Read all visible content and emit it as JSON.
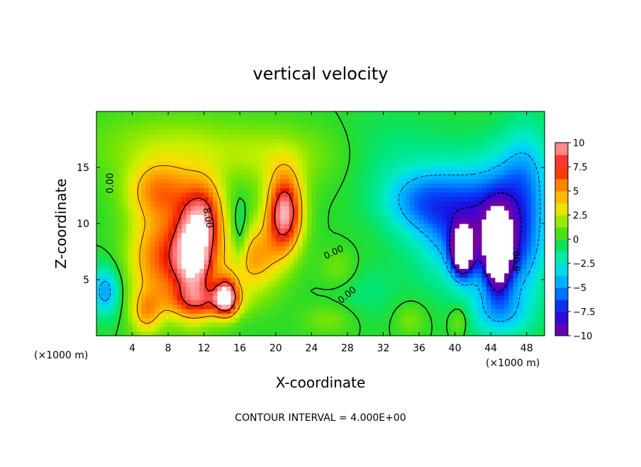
{
  "chart_data": {
    "type": "heatmap",
    "title": "vertical velocity",
    "xlabel": "X-coordinate",
    "ylabel": "Z-coordinate",
    "x_unit": "(×1000 m)",
    "xlim": [
      0,
      50
    ],
    "ylim": [
      0,
      20
    ],
    "x_ticks": [
      4,
      8,
      12,
      16,
      20,
      24,
      28,
      32,
      36,
      40,
      44,
      48
    ],
    "y_ticks": [
      5,
      10,
      15
    ],
    "colorbar": {
      "range": [
        -10,
        10
      ],
      "ticks": [
        10,
        7.5,
        5,
        2.5,
        0,
        -2.5,
        -5,
        -7.5,
        -10
      ],
      "tick_labels": [
        "10",
        "7.5",
        "5",
        "2.5",
        "0",
        "−2.5",
        "−5",
        "−7.5",
        "−10"
      ]
    },
    "contour_interval_text": "CONTOUR INTERVAL = 4.000E+00",
    "contour_labels": [
      {
        "text": "0.00",
        "x": 1.6,
        "y": 13.6,
        "angle": -90
      },
      {
        "text": "8.00",
        "x": 12.4,
        "y": 10.5,
        "angle": 80
      },
      {
        "text": "0.00",
        "x": 26.5,
        "y": 7.4,
        "angle": -25
      },
      {
        "text": "0.00",
        "x": 28.0,
        "y": 3.6,
        "angle": -40
      },
      {
        "text": "-8.00",
        "x": 47.0,
        "y": 6.5,
        "angle": -90
      }
    ],
    "features": [
      {
        "type": "updraft",
        "x": 11.0,
        "z": 7.5,
        "peak": 11.0
      },
      {
        "type": "updraft",
        "x": 21.0,
        "z": 11.0,
        "peak": 10.0
      },
      {
        "type": "updraft",
        "x": 14.5,
        "z": 3.5,
        "peak": 9.5
      },
      {
        "type": "downdraft",
        "x": 40.8,
        "z": 7.5,
        "peak": -11.5
      },
      {
        "type": "downdraft",
        "x": 44.8,
        "z": 7.5,
        "peak": -12.0
      }
    ]
  }
}
